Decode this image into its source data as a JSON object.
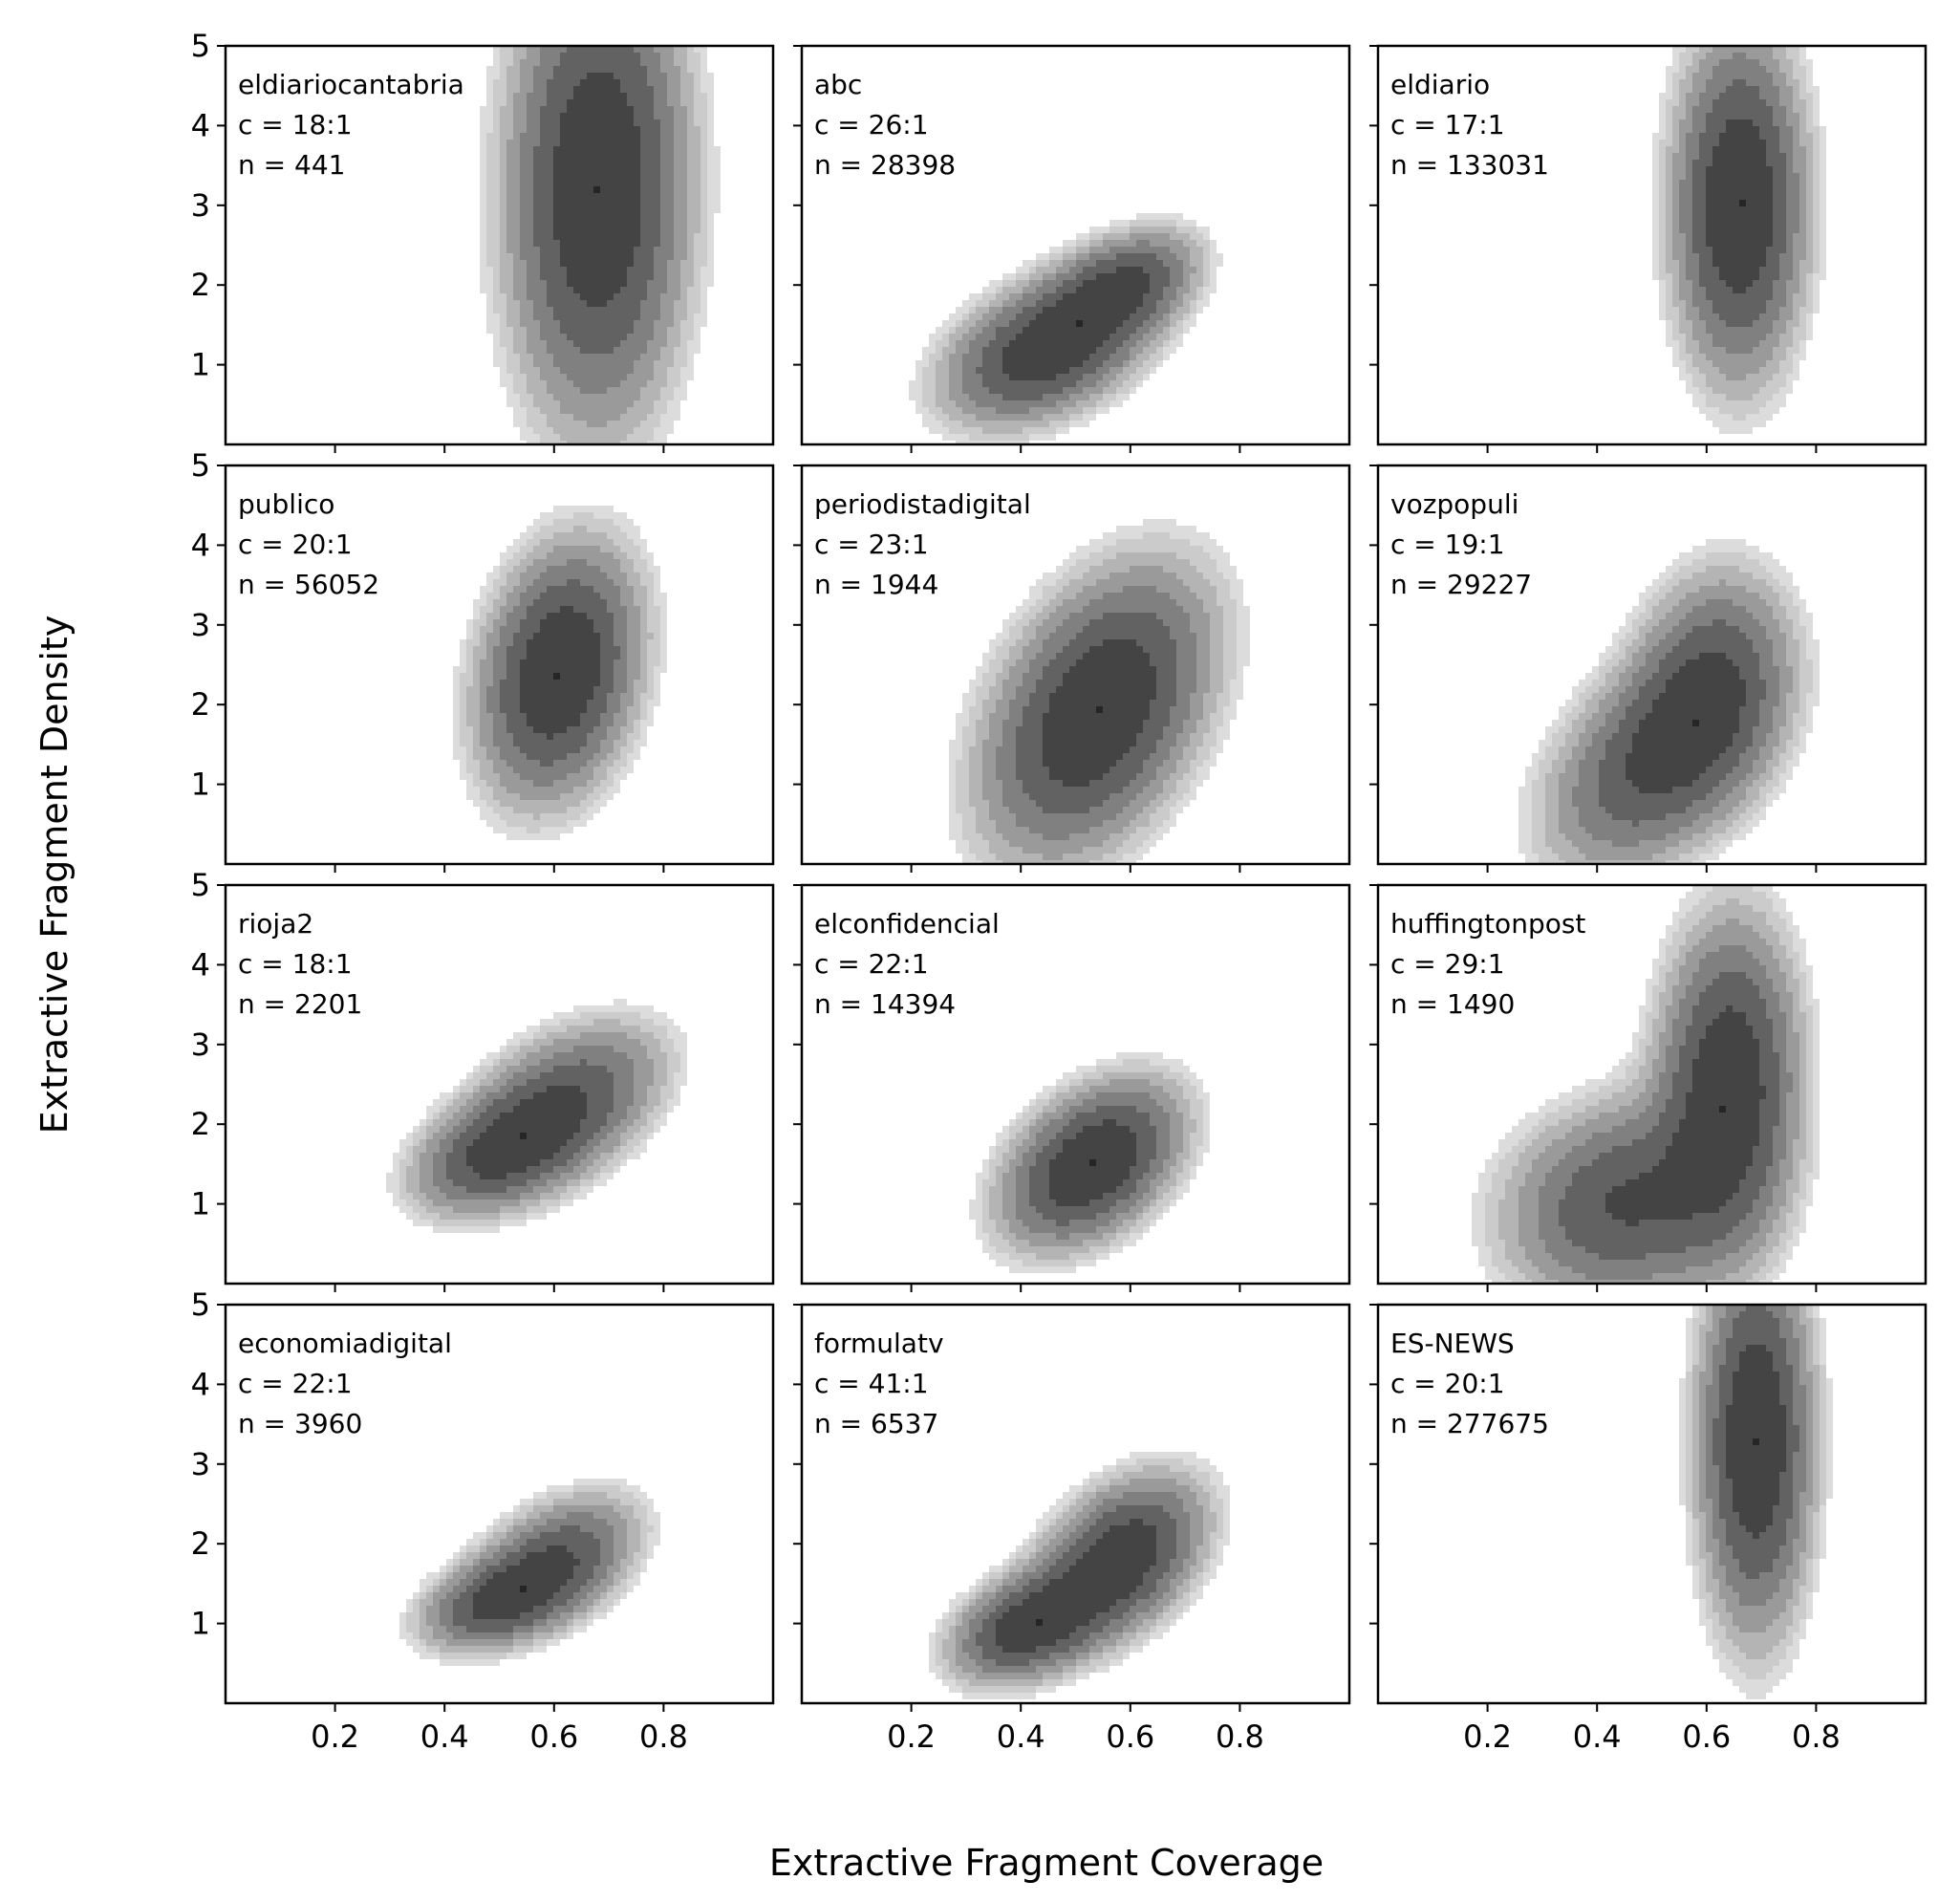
{
  "chart_data": {
    "type": "contour",
    "figure": {
      "xlabel": "Extractive Fragment Coverage",
      "ylabel": "Extractive Fragment Density",
      "grid": false,
      "layout": "4x3",
      "xlim": [
        0,
        1
      ],
      "ylim": [
        0,
        5
      ],
      "xticks": [
        0.2,
        0.4,
        0.6,
        0.8
      ],
      "yticks": [
        1,
        2,
        3,
        4,
        5
      ],
      "levels": 8,
      "fill_colors": [
        "#dcdcdc",
        "#cbcbcb",
        "#b4b4b4",
        "#9a9a9a",
        "#808080",
        "#626262",
        "#444444",
        "#262626",
        "#111111"
      ]
    },
    "panels": [
      {
        "name": "eldiariocantabria",
        "c": "c = 18:1",
        "n": "n = 441",
        "peak": [
          0.68,
          3.2
        ],
        "spread": [
          0.095,
          1.7
        ],
        "tilt": 0.6,
        "mode2": null
      },
      {
        "name": "abc",
        "c": "c = 26:1",
        "n": "n = 28398",
        "peak": [
          0.45,
          1.2
        ],
        "spread": [
          0.11,
          0.5
        ],
        "tilt": 2.1,
        "mode2": [
          0.59,
          2.0,
          0.08,
          0.38,
          0.7,
          2.0
        ]
      },
      {
        "name": "eldiario",
        "c": "c = 17:1",
        "n": "n = 133031",
        "peak": [
          0.66,
          3.0
        ],
        "spread": [
          0.07,
          1.25
        ],
        "tilt": 0.3,
        "mode2": null
      },
      {
        "name": "publico",
        "c": "c = 20:1",
        "n": "n = 56052",
        "peak": [
          0.61,
          2.4
        ],
        "spread": [
          0.085,
          0.9
        ],
        "tilt": 2.6,
        "mode2": null
      },
      {
        "name": "periodistadigital",
        "c": "c = 23:1",
        "n": "n = 1944",
        "peak": [
          0.54,
          1.9
        ],
        "spread": [
          0.12,
          0.95
        ],
        "tilt": 3.6,
        "mode2": null
      },
      {
        "name": "vozpopuli",
        "c": "c = 19:1",
        "n": "n = 29227",
        "peak": [
          0.51,
          1.3
        ],
        "spread": [
          0.12,
          0.75
        ],
        "tilt": 3.1,
        "mode2": [
          0.61,
          2.3,
          0.085,
          0.85,
          0.8,
          1.6
        ]
      },
      {
        "name": "rioja2",
        "c": "c = 18:1",
        "n": "n = 2201",
        "peak": [
          0.61,
          2.2
        ],
        "spread": [
          0.11,
          0.55
        ],
        "tilt": 2.6,
        "mode2": [
          0.49,
          1.6,
          0.09,
          0.4,
          0.8,
          1.8
        ]
      },
      {
        "name": "elconfidencial",
        "c": "c = 22:1",
        "n": "n = 14394",
        "peak": [
          0.53,
          1.5
        ],
        "spread": [
          0.095,
          0.55
        ],
        "tilt": 2.6,
        "mode2": null
      },
      {
        "name": "huffingtonpost",
        "c": "c = 29:1",
        "n": "n = 1490",
        "peak": [
          0.64,
          2.5
        ],
        "spread": [
          0.075,
          1.2
        ],
        "tilt": 1.0,
        "mode2": [
          0.45,
          1.0,
          0.13,
          0.75,
          0.75,
          0.8
        ]
      },
      {
        "name": "economiadigital",
        "c": "c = 22:1",
        "n": "n = 3960",
        "peak": [
          0.6,
          1.75
        ],
        "spread": [
          0.09,
          0.45
        ],
        "tilt": 2.4,
        "mode2": [
          0.49,
          1.25,
          0.08,
          0.32,
          0.9,
          1.6
        ]
      },
      {
        "name": "formulatv",
        "c": "c = 41:1",
        "n": "n = 6537",
        "peak": [
          0.58,
          1.8
        ],
        "spread": [
          0.09,
          0.55
        ],
        "tilt": 2.8,
        "mode2": [
          0.41,
          0.95,
          0.08,
          0.38,
          0.9,
          1.8
        ]
      },
      {
        "name": "ES-NEWS",
        "c": "c = 20:1",
        "n": "n = 277675",
        "peak": [
          0.69,
          3.3
        ],
        "spread": [
          0.06,
          1.4
        ],
        "tilt": 0.2,
        "mode2": null
      }
    ]
  }
}
